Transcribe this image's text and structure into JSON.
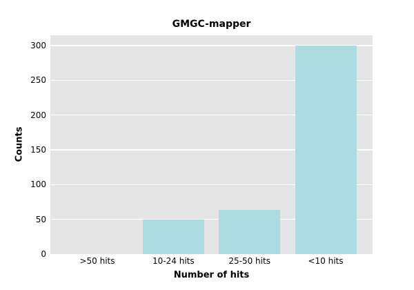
{
  "chart_data": {
    "type": "bar",
    "title": "GMGC-mapper",
    "xlabel": "Number of hits",
    "ylabel": "Counts",
    "categories": [
      ">50 hits",
      "10-24 hits",
      "25-50 hits",
      "<10 hits"
    ],
    "values": [
      0,
      50,
      64,
      300
    ],
    "yticks": [
      0,
      50,
      100,
      150,
      200,
      250,
      300
    ],
    "ylim": [
      0,
      315
    ],
    "grid": true,
    "legend": "none",
    "colors": {
      "bar": "#acdce1",
      "plot_bg": "#e5e5e5",
      "grid": "#ffffff",
      "figure_bg": "#ffffff",
      "text": "#000000"
    }
  }
}
